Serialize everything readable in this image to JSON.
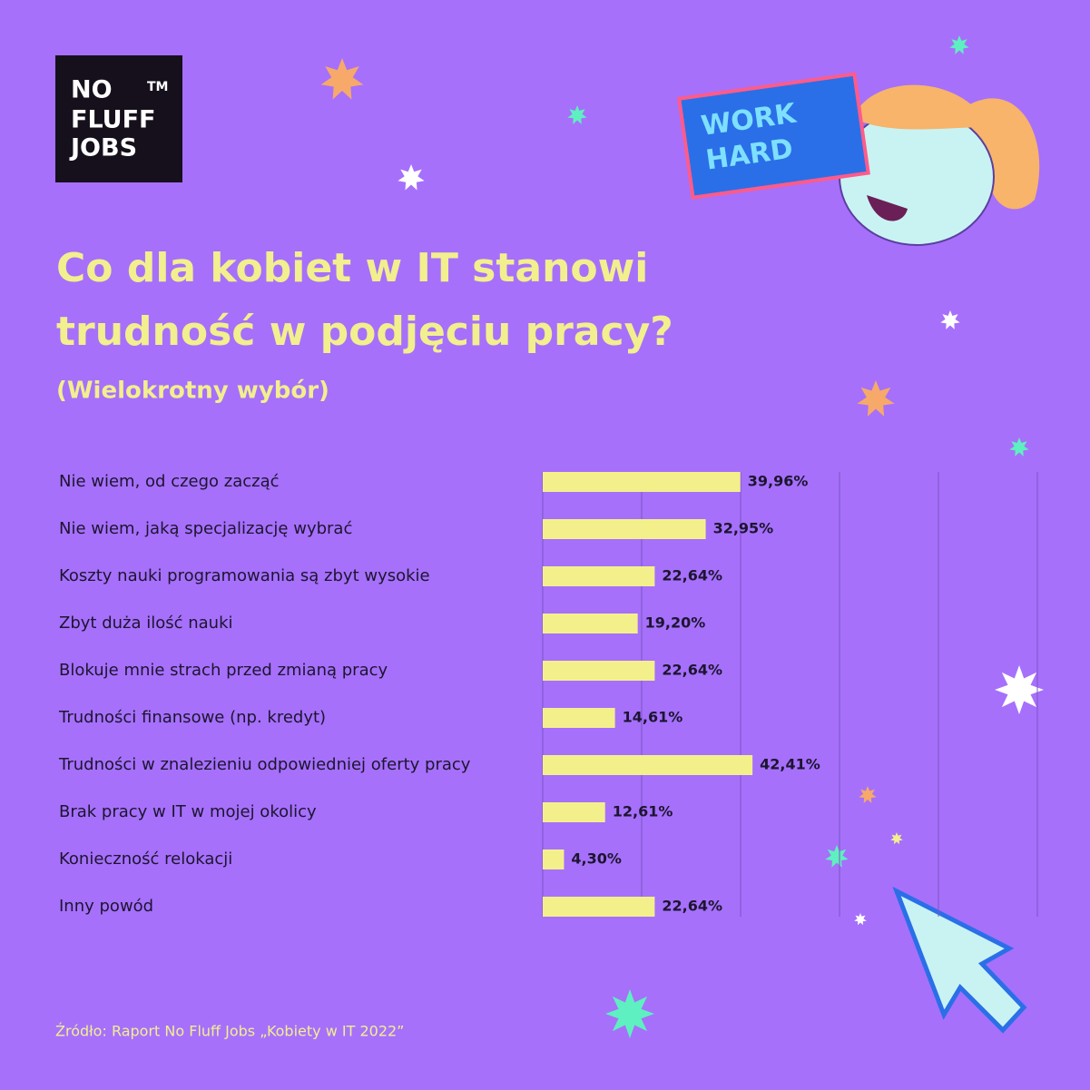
{
  "logo": {
    "lines": [
      "NO",
      "FLUFF",
      "JOBS"
    ],
    "mark": "TM"
  },
  "badge": {
    "lines": [
      "WORK",
      "HARD"
    ]
  },
  "chart_data": {
    "type": "hbar",
    "title": [
      "Co dla kobiet w IT stanowi",
      "trudność w podjęciu pracy?"
    ],
    "subtitle": "(Wielokrotny wybór)",
    "categories": [
      "Nie wiem, od czego zacząć",
      "Nie wiem, jaką specjalizację wybrać",
      "Koszty nauki programowania są zbyt wysokie",
      "Zbyt duża ilość nauki",
      "Blokuje mnie strach przed zmianą pracy",
      "Trudności finansowe (np. kredyt)",
      "Trudności w znalezieniu odpowiedniej oferty pracy",
      "Brak pracy w IT w mojej okolicy",
      "Konieczność relokacji",
      "Inny powód"
    ],
    "values": [
      39.96,
      32.95,
      22.64,
      19.2,
      22.64,
      14.61,
      42.41,
      12.61,
      4.3,
      22.64
    ],
    "value_labels": [
      "39,96%",
      "32,95%",
      "22,64%",
      "19,20%",
      "22,64%",
      "14,61%",
      "42,41%",
      "12,61%",
      "4,30%",
      "22,64%"
    ],
    "color": "#f3f08c",
    "xlim": [
      0,
      100
    ],
    "xticks": [
      0,
      20,
      40,
      60,
      80,
      100
    ],
    "grid": true,
    "source": "Źródło: Raport No Fluff Jobs „Kobiety w IT 2022”"
  }
}
